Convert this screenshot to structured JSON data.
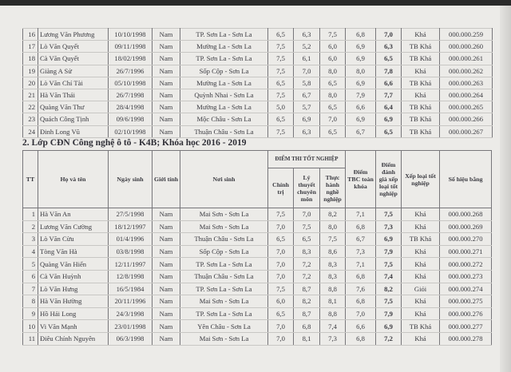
{
  "table1": {
    "rows": [
      [
        "16",
        "Lương Văn Phương",
        "10/10/1998",
        "Nam",
        "TP. Sơn La - Sơn La",
        "6,5",
        "6,3",
        "7,5",
        "6,8",
        "7,0",
        "Khá",
        "000.000.259"
      ],
      [
        "17",
        "Lò Văn Quyết",
        "09/11/1998",
        "Nam",
        "Mường La - Sơn La",
        "7,5",
        "5,2",
        "6,0",
        "6,9",
        "6,3",
        "TB Khá",
        "000.000.260"
      ],
      [
        "18",
        "Cà Văn Quyết",
        "18/02/1998",
        "Nam",
        "TP. Sơn La - Sơn La",
        "7,5",
        "6,1",
        "6,0",
        "6,9",
        "6,5",
        "TB Khá",
        "000.000.261"
      ],
      [
        "19",
        "Giàng A Sử",
        "26/7/1996",
        "Nam",
        "Sốp Cộp - Sơn La",
        "7,5",
        "7,0",
        "8,0",
        "8,0",
        "7,8",
        "Khá",
        "000.000.262"
      ],
      [
        "20",
        "Lò Văn Chí Tài",
        "05/10/1998",
        "Nam",
        "Mường La - Sơn La",
        "6,5",
        "5,8",
        "6,5",
        "6,9",
        "6,6",
        "TB Khá",
        "000.000.263"
      ],
      [
        "21",
        "Hà Văn Thái",
        "26/7/1998",
        "Nam",
        "Quỳnh Nhai - Sơn La",
        "7,5",
        "6,7",
        "8,0",
        "7,9",
        "7,7",
        "Khá",
        "000.000.264"
      ],
      [
        "22",
        "Quàng Văn Thư",
        "28/4/1998",
        "Nam",
        "Mường La - Sơn La",
        "5,0",
        "5,7",
        "6,5",
        "6,6",
        "6,4",
        "TB Khá",
        "000.000.265"
      ],
      [
        "23",
        "Quách Công Tịnh",
        "09/6/1998",
        "Nam",
        "Mộc Châu - Sơn La",
        "6,5",
        "6,9",
        "7,0",
        "6,9",
        "6,9",
        "TB Khá",
        "000.000.266"
      ],
      [
        "24",
        "Đinh Long Vũ",
        "02/10/1998",
        "Nam",
        "Thuận Châu - Sơn La",
        "7,5",
        "6,3",
        "6,5",
        "6,7",
        "6,5",
        "TB Khá",
        "000.000.267"
      ]
    ]
  },
  "section2": {
    "heading": "2. Lớp CĐN Công nghệ ô tô - K4B; Khóa học 2016 - 2019",
    "headers": {
      "tt": "TT",
      "name": "Họ và tên",
      "dob": "Ngày sinh",
      "gender": "Giới tính",
      "birthplace": "Nơi sinh",
      "exam_group": "ĐIỂM THI TỐT NGHIỆP",
      "politics": "Chính trị",
      "theory": "Lý thuyết chuyên môn",
      "practice": "Thực hành nghề nghiệp",
      "avg": "Điểm TBC toàn khóa",
      "eval": "Điểm đánh giá xếp loại tốt nghiệp",
      "rank": "Xếp loại tốt nghiệp",
      "cert": "Số hiệu bằng"
    },
    "rows": [
      [
        "1",
        "Hà Văn An",
        "27/5/1998",
        "Nam",
        "Mai Sơn - Sơn La",
        "7,5",
        "7,0",
        "8,2",
        "7,1",
        "7,5",
        "Khá",
        "000.000.268"
      ],
      [
        "2",
        "Lương Văn Cường",
        "18/12/1997",
        "Nam",
        "Mai Sơn - Sơn La",
        "7,0",
        "7,5",
        "8,0",
        "6,8",
        "7,3",
        "Khá",
        "000.000.269"
      ],
      [
        "3",
        "Lò Văn Cừu",
        "01/4/1996",
        "Nam",
        "Thuận Châu - Sơn La",
        "6,5",
        "6,5",
        "7,5",
        "6,7",
        "6,9",
        "TB Khá",
        "000.000.270"
      ],
      [
        "4",
        "Tòng Văn Hà",
        "03/8/1998",
        "Nam",
        "Sốp Cộp - Sơn La",
        "7,0",
        "8,3",
        "8,6",
        "7,3",
        "7,9",
        "Khá",
        "000.000.271"
      ],
      [
        "5",
        "Quàng Văn Hiển",
        "12/11/1997",
        "Nam",
        "TP. Sơn La - Sơn La",
        "7,0",
        "7,2",
        "8,3",
        "7,1",
        "7,5",
        "Khá",
        "000.000.272"
      ],
      [
        "6",
        "Cà Văn Huỳnh",
        "12/8/1998",
        "Nam",
        "Thuận Châu - Sơn La",
        "7,0",
        "7,2",
        "8,3",
        "6,8",
        "7,4",
        "Khá",
        "000.000.273"
      ],
      [
        "7",
        "Lò Văn Hưng",
        "16/5/1984",
        "Nam",
        "TP. Sơn La - Sơn La",
        "7,5",
        "8,7",
        "8,8",
        "7,6",
        "8,2",
        "Giỏi",
        "000.000.274"
      ],
      [
        "8",
        "Hà Văn Hường",
        "20/11/1996",
        "Nam",
        "Mai Sơn - Sơn La",
        "6,0",
        "8,2",
        "8,1",
        "6,8",
        "7,5",
        "Khá",
        "000.000.275"
      ],
      [
        "9",
        "Hồ Hải Long",
        "24/3/1998",
        "Nam",
        "TP. Sơn La - Sơn La",
        "6,5",
        "8,7",
        "8,8",
        "7,0",
        "7,9",
        "Khá",
        "000.000.276"
      ],
      [
        "10",
        "Vi Văn Mạnh",
        "23/01/1998",
        "Nam",
        "Yên Châu - Sơn La",
        "7,0",
        "6,8",
        "7,4",
        "6,6",
        "6,9",
        "TB Khá",
        "000.000.277"
      ],
      [
        "11",
        "Điêu Chính Nguyên",
        "06/3/1998",
        "Nam",
        "Mai Sơn - Sơn La",
        "7,0",
        "8,1",
        "7,3",
        "6,8",
        "7,2",
        "Khá",
        "000.000.278"
      ]
    ]
  }
}
